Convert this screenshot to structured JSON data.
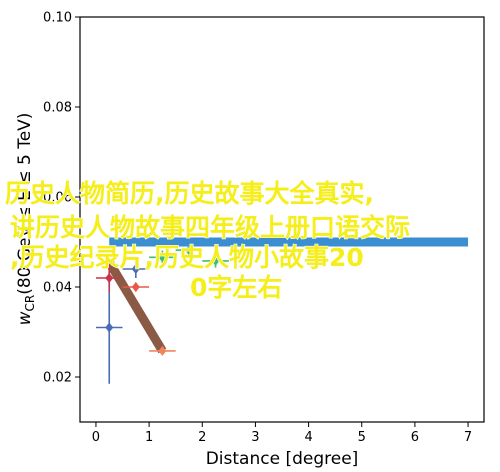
{
  "chart_data": {
    "type": "scatter",
    "xlabel": "Distance [degree]",
    "ylabel": "w_CR(80 GeV ≤ E ≤ 5 TeV)",
    "ylabel_parts": {
      "w": "w",
      "sub": "CR",
      "rest": "(80 GeV ≤ E ≤ 5 TeV)"
    },
    "xlim": [
      -0.3,
      7.3
    ],
    "ylim": [
      0.01,
      0.1
    ],
    "xticks": [
      "0",
      "1",
      "2",
      "3",
      "4",
      "5",
      "6",
      "7"
    ],
    "yticks": [
      "0.02",
      "0.04",
      "0.06",
      "0.08",
      "0.10"
    ],
    "grid": false,
    "series": [
      {
        "color": "#4a6cb3",
        "points": [
          {
            "x": 0.25,
            "y": 0.031,
            "yerr": [
              0.0125,
              0.0125
            ],
            "xerr": 0.25
          }
        ]
      },
      {
        "color": "#c8344a",
        "points": [
          {
            "x": 0.25,
            "y": 0.042,
            "yerr": [
              0.003,
              0.003
            ],
            "xerr": 0.25
          }
        ]
      },
      {
        "color": "#4a6cb3",
        "points": [
          {
            "x": 0.75,
            "y": 0.044,
            "yerr": [
              0.002,
              0.002
            ],
            "xerr": 0.25
          }
        ]
      },
      {
        "color": "#e8584a",
        "points": [
          {
            "x": 0.75,
            "y": 0.04,
            "yerr": [
              0.001,
              0.001
            ],
            "xerr": 0.25
          }
        ]
      },
      {
        "color": "#f0845a",
        "points": [
          {
            "x": 1.25,
            "y": 0.0258,
            "yerr": [
              0.0005,
              0.0005
            ],
            "xerr": 0.25
          }
        ]
      },
      {
        "color": "#3fbf6a",
        "points": [
          {
            "x": 1.25,
            "y": 0.0466,
            "yerr": [
              0.0015,
              0.0015
            ],
            "xerr": 0.25
          }
        ]
      },
      {
        "color": "#3fbf6a",
        "points": [
          {
            "x": 1.75,
            "y": 0.0482,
            "yerr": [
              0.001,
              0.001
            ],
            "xerr": 0.25
          }
        ]
      },
      {
        "color": "#3fbf6a",
        "points": [
          {
            "x": 2.25,
            "y": 0.0458,
            "yerr": [
              0.0015,
              0.0015
            ],
            "xerr": 0.25
          }
        ]
      }
    ],
    "bands": [
      {
        "color": "#3b8fd0",
        "x": [
          0.25,
          7.0
        ],
        "y": [
          0.05,
          0.05
        ]
      },
      {
        "color": "#8b5a44",
        "x": [
          0.25,
          1.25
        ],
        "y": [
          0.0455,
          0.0258
        ]
      }
    ]
  },
  "overlay": {
    "color": "#f5ee1a",
    "lines": [
      "历史人物简历,历史故事大全真实,",
      "讲历史人物故事四年级上册口语交际",
      ",历史纪录片,历史人物小故事20",
      "0字左右"
    ]
  }
}
